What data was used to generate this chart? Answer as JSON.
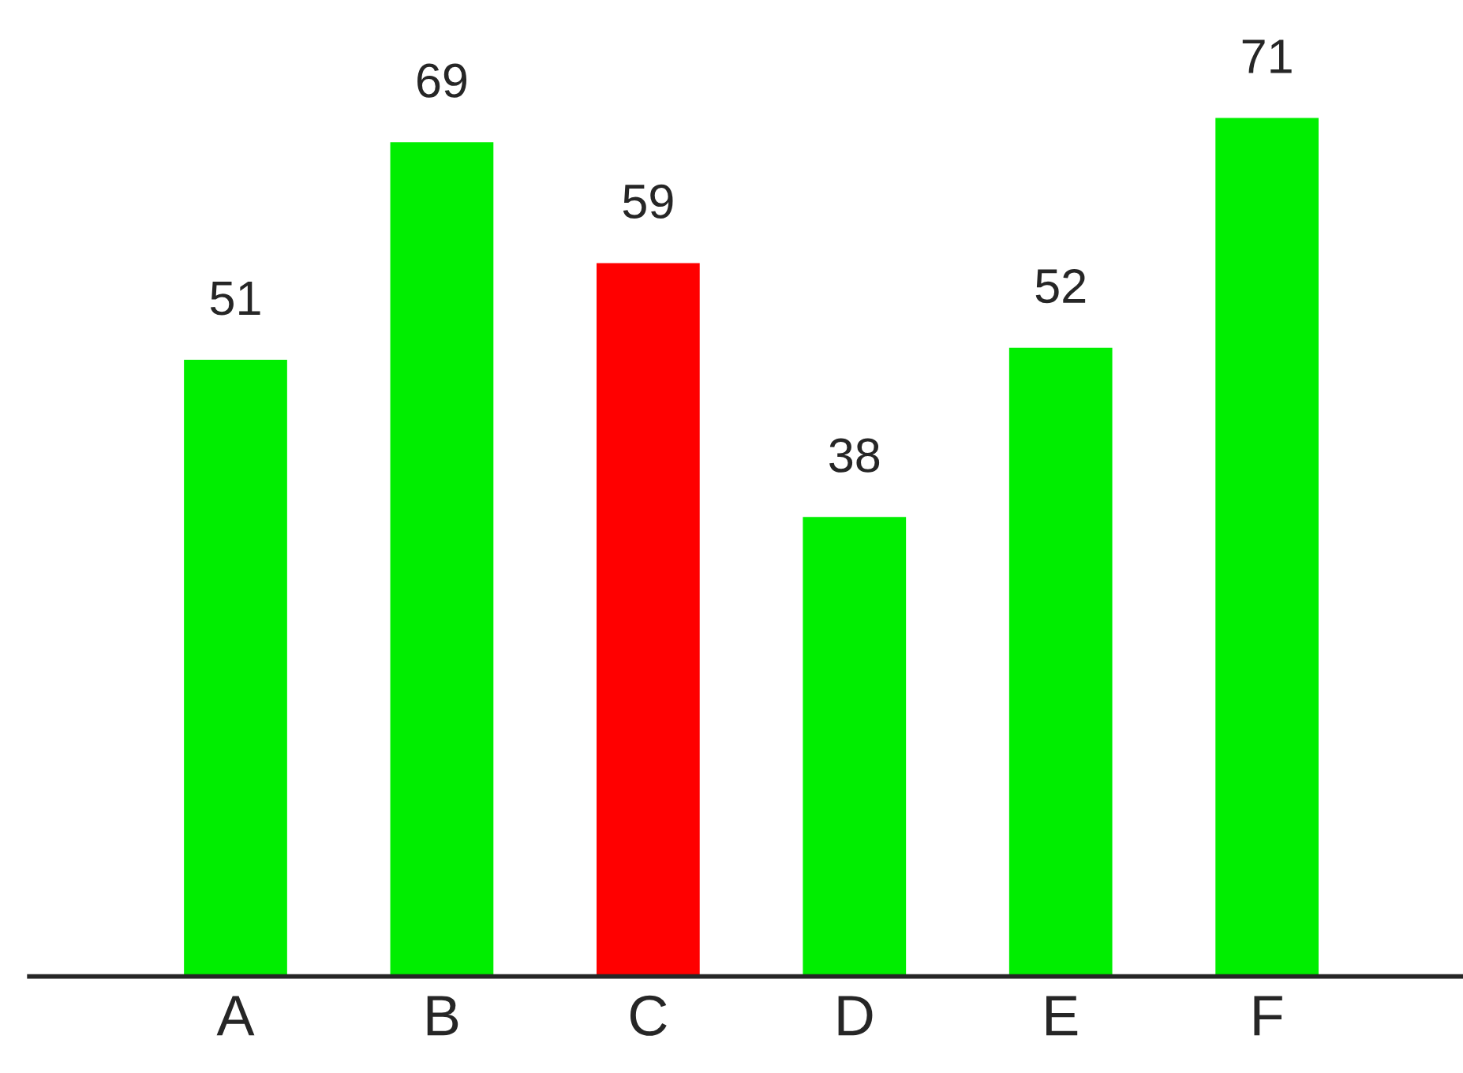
{
  "chart_data": {
    "type": "bar",
    "categories": [
      "A",
      "B",
      "C",
      "D",
      "E",
      "F"
    ],
    "values": [
      51,
      69,
      59,
      38,
      52,
      71
    ],
    "colors": [
      "#00ee00",
      "#00ee00",
      "#ff0000",
      "#00ee00",
      "#00ee00",
      "#00ee00"
    ],
    "data_labels": true,
    "tick_labels": "x",
    "grid": false,
    "legend": false
  }
}
